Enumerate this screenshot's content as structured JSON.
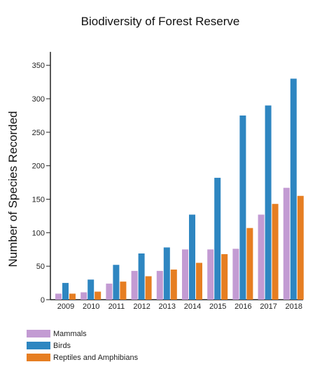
{
  "chart_data": {
    "type": "bar",
    "title": "Biodiversity of Forest Reserve",
    "xlabel": "",
    "ylabel": "Number of Species Recorded",
    "ylim": [
      0,
      370
    ],
    "yticks": [
      0,
      50,
      100,
      150,
      200,
      250,
      300,
      350
    ],
    "categories": [
      "2009",
      "2010",
      "2011",
      "2012",
      "2013",
      "2014",
      "2015",
      "2016",
      "2017",
      "2018"
    ],
    "series": [
      {
        "name": "Mammals",
        "color": "#c39bd3",
        "values": [
          9,
          11,
          24,
          43,
          43,
          75,
          75,
          76,
          127,
          167
        ]
      },
      {
        "name": "Birds",
        "color": "#2e86c1",
        "values": [
          25,
          30,
          52,
          69,
          78,
          127,
          182,
          275,
          290,
          330
        ]
      },
      {
        "name": "Reptiles and Amphibians",
        "color": "#e67e22",
        "values": [
          9,
          12,
          27,
          35,
          45,
          55,
          68,
          107,
          143,
          155
        ]
      }
    ],
    "grid": false,
    "legend": "bottom-left"
  }
}
